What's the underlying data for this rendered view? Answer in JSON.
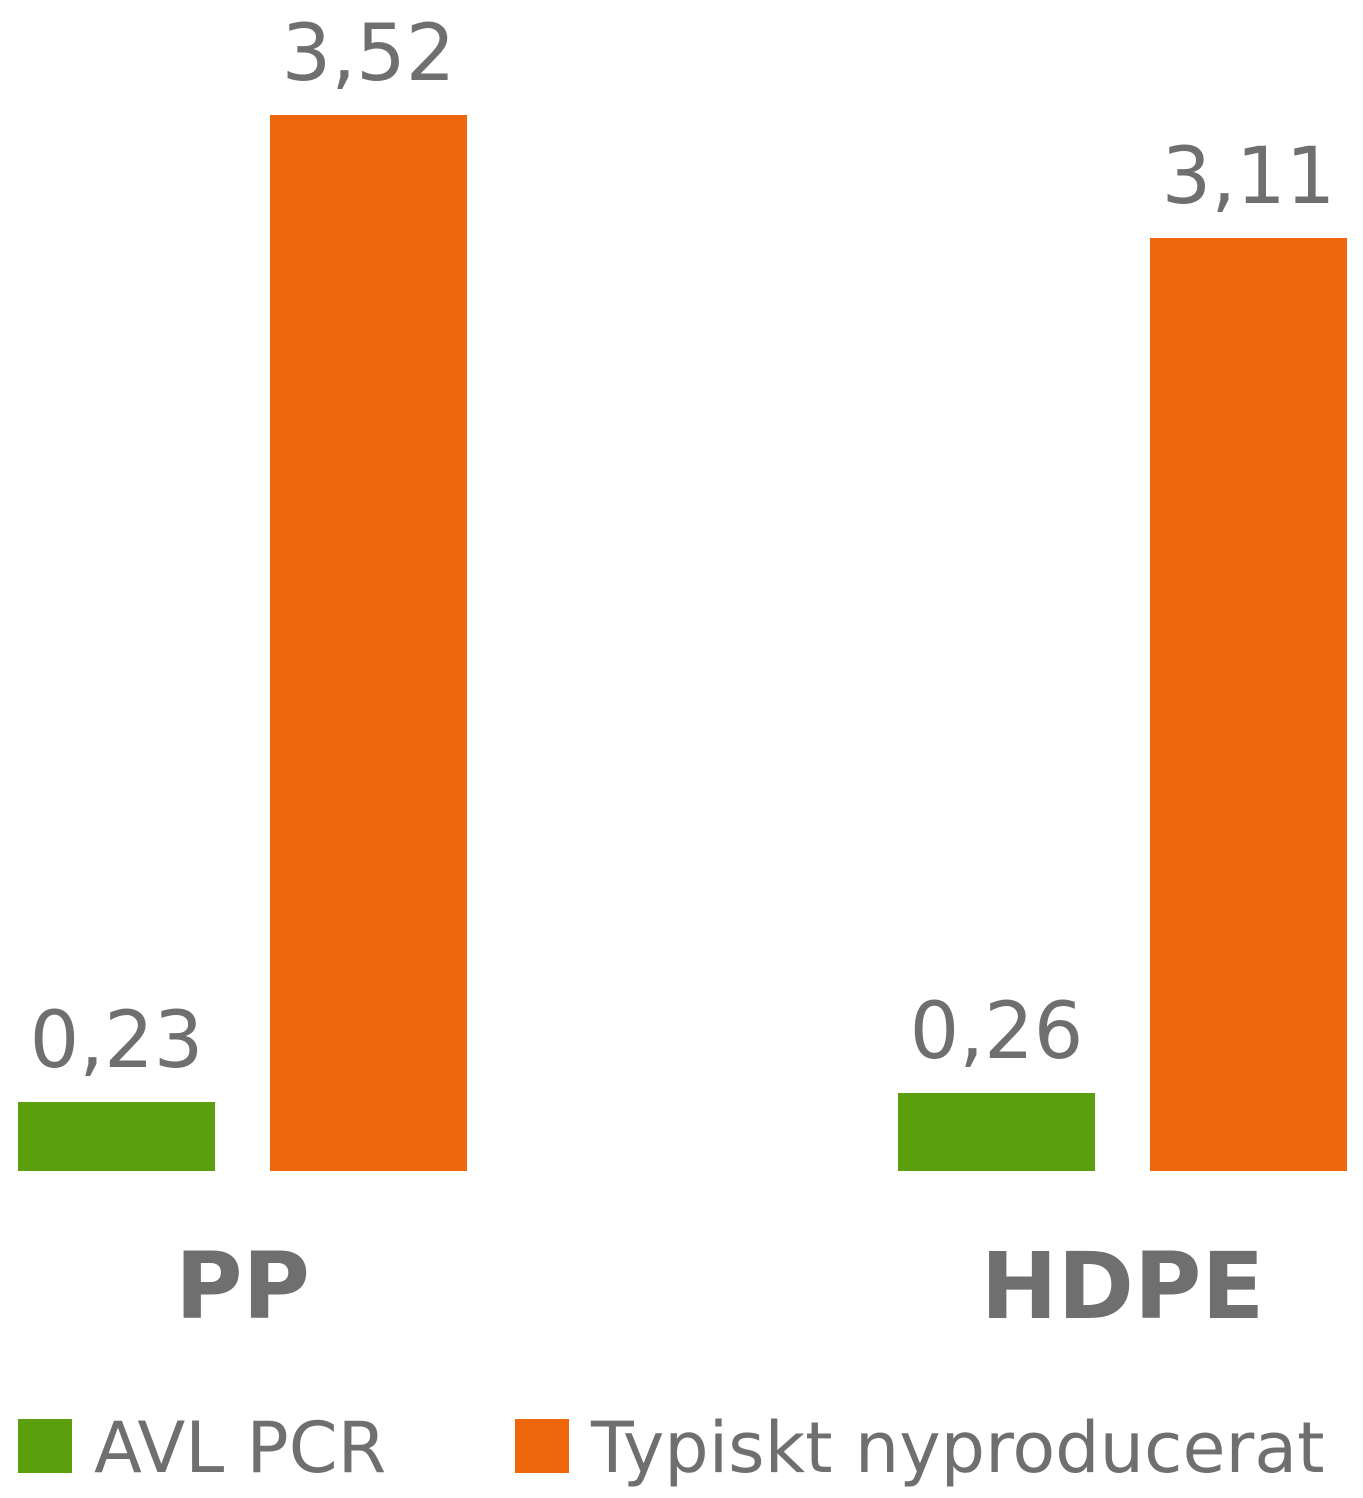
{
  "chart_data": {
    "type": "bar",
    "categories": [
      "PP",
      "HDPE"
    ],
    "series": [
      {
        "name": "AVL PCR",
        "color": "#5b9e0e",
        "values": [
          0.23,
          0.26
        ],
        "value_labels": [
          "0,23",
          "0,26"
        ]
      },
      {
        "name": "Typiskt nyproducerat",
        "color": "#f0660d",
        "values": [
          3.52,
          3.11
        ],
        "value_labels": [
          "3,52",
          "3,11"
        ]
      }
    ]
  }
}
